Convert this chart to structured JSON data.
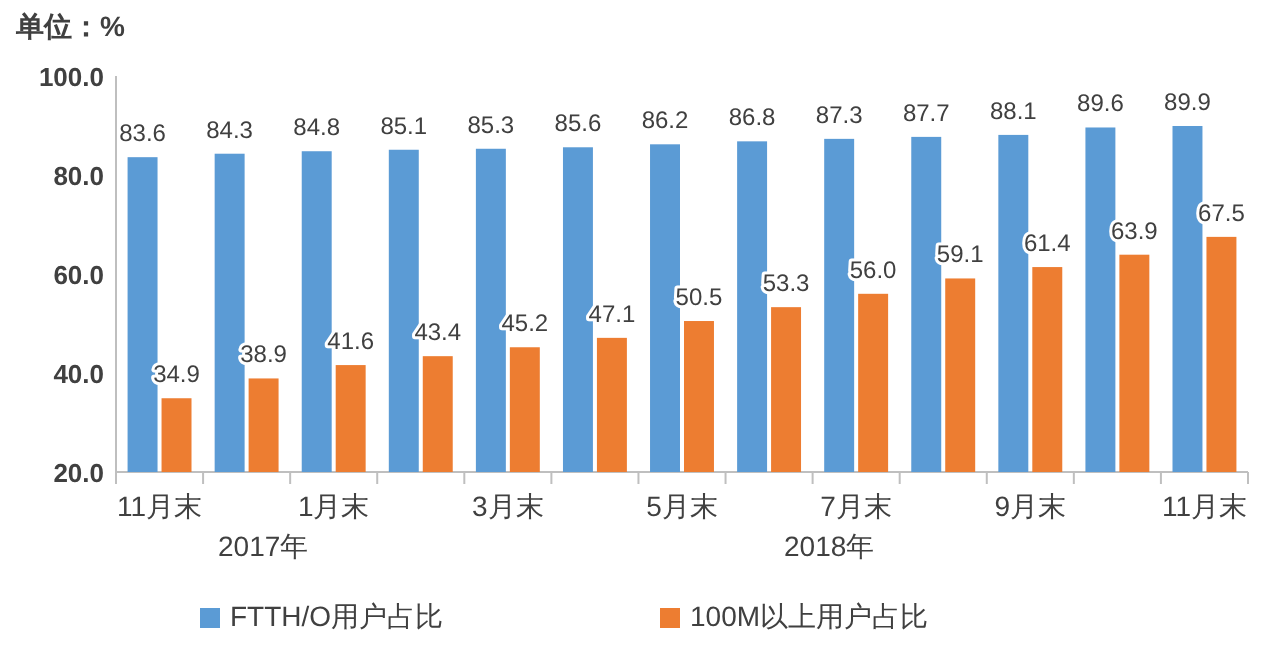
{
  "chart_data": {
    "type": "bar",
    "ylabel": "单位：%",
    "categories": [
      "11月末",
      null,
      "1月末",
      null,
      "3月末",
      null,
      "5月末",
      null,
      "7月末",
      null,
      "9月末",
      null,
      "11月末"
    ],
    "series": [
      {
        "name": "FTTH/O用户占比",
        "color": "#5b9bd5",
        "values": [
          83.6,
          84.3,
          84.8,
          85.1,
          85.3,
          85.6,
          86.2,
          86.8,
          87.3,
          87.7,
          88.1,
          89.6,
          89.9
        ],
        "value_labels": [
          "83.6",
          "84.3",
          "84.8",
          "85.1",
          "85.3",
          "85.6",
          "86.2",
          "86.8",
          "87.3",
          "87.7",
          "88.1",
          "89.6",
          "89.9"
        ]
      },
      {
        "name": "100M以上用户占比",
        "color": "#ed7d31",
        "values": [
          34.9,
          38.9,
          41.6,
          43.4,
          45.2,
          47.1,
          50.5,
          53.3,
          56.0,
          59.1,
          61.4,
          63.9,
          67.5
        ],
        "value_labels": [
          "34.9",
          "38.9",
          "41.6",
          "43.4",
          "45.2",
          "47.1",
          "50.5",
          "53.3",
          "56.0",
          "59.1",
          "61.4",
          "63.9",
          "67.5"
        ]
      }
    ],
    "ylim": [
      20,
      100
    ],
    "yticks": [
      {
        "value": 20,
        "label": "20.0"
      },
      {
        "value": 40,
        "label": "40.0"
      },
      {
        "value": 60,
        "label": "60.0"
      },
      {
        "value": 80,
        "label": "80.0"
      },
      {
        "value": 100,
        "label": "100.0"
      }
    ],
    "annotations": [
      "2017年",
      "2018年"
    ],
    "legend": "bottom"
  }
}
